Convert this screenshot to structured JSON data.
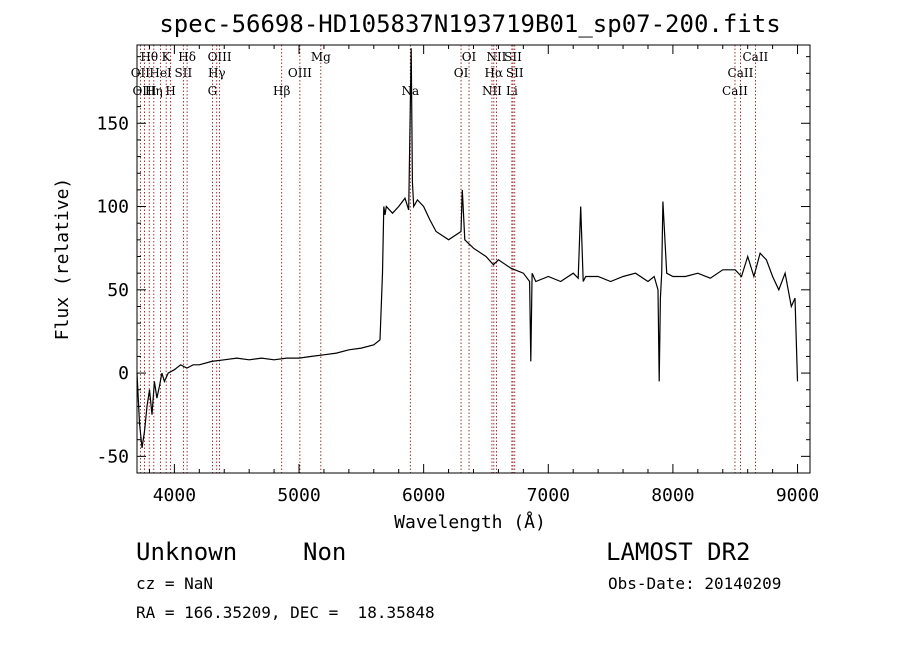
{
  "chart_data": {
    "type": "line",
    "title": "spec-56698-HD105837N193719B01_sp07-200.fits",
    "xlabel": "Wavelength (Å)",
    "ylabel": "Flux (relative)",
    "xlim": [
      3700,
      9100
    ],
    "ylim": [
      -60,
      197
    ],
    "xticks": [
      4000,
      5000,
      6000,
      7000,
      8000,
      9000
    ],
    "yticks": [
      -50,
      0,
      50,
      100,
      150
    ],
    "grid": false,
    "line_color": "#000000",
    "marker_color": "#8b0000",
    "series": [
      {
        "x": [
          3700,
          3720,
          3740,
          3760,
          3780,
          3800,
          3820,
          3840,
          3860,
          3880,
          3900,
          3920,
          3950,
          4000,
          4050,
          4100,
          4150,
          4200,
          4300,
          4400,
          4500,
          4600,
          4700,
          4800,
          4900,
          5000,
          5100,
          5200,
          5300,
          5400,
          5500,
          5600,
          5650,
          5670,
          5680,
          5690,
          5700,
          5750,
          5800,
          5850,
          5880,
          5900,
          5910,
          5920,
          5950,
          6000,
          6050,
          6100,
          6200,
          6300,
          6310,
          6330,
          6400,
          6500,
          6560,
          6600,
          6700,
          6800,
          6850,
          6860,
          6870,
          6900,
          7000,
          7100,
          7200,
          7240,
          7260,
          7280,
          7300,
          7400,
          7500,
          7600,
          7700,
          7800,
          7850,
          7880,
          7890,
          7900,
          7910,
          7920,
          7950,
          8000,
          8100,
          8200,
          8300,
          8400,
          8500,
          8550,
          8600,
          8650,
          8700,
          8750,
          8800,
          8850,
          8900,
          8950,
          8980,
          9000
        ],
        "y": [
          0,
          -30,
          -45,
          -35,
          -20,
          -10,
          -25,
          -5,
          -15,
          -8,
          0,
          -5,
          0,
          2,
          5,
          3,
          5,
          5,
          7,
          8,
          9,
          8,
          9,
          8,
          9,
          9,
          10,
          11,
          12,
          14,
          15,
          17,
          20,
          60,
          100,
          95,
          100,
          96,
          100,
          105,
          98,
          195,
          115,
          100,
          104,
          100,
          92,
          85,
          80,
          85,
          110,
          80,
          75,
          70,
          65,
          68,
          63,
          60,
          55,
          7,
          60,
          55,
          58,
          55,
          60,
          57,
          100,
          55,
          58,
          58,
          55,
          58,
          60,
          55,
          58,
          50,
          -5,
          45,
          60,
          103,
          60,
          58,
          58,
          60,
          57,
          62,
          62,
          58,
          70,
          58,
          72,
          68,
          58,
          50,
          60,
          40,
          45,
          -5
        ]
      }
    ],
    "line_markers": [
      {
        "label": "Hθ",
        "x": 3798,
        "row": 1
      },
      {
        "label": "OII",
        "x": 3727,
        "row": 2
      },
      {
        "label": "OIII",
        "x": 3760,
        "row": 3
      },
      {
        "label": "Hη",
        "x": 3835,
        "row": 3
      },
      {
        "label": "HeI",
        "x": 3889,
        "row": 2
      },
      {
        "label": "K",
        "x": 3934,
        "row": 1
      },
      {
        "label": "H",
        "x": 3970,
        "row": 3
      },
      {
        "label": "SII",
        "x": 4072,
        "row": 2
      },
      {
        "label": "Hδ",
        "x": 4102,
        "row": 1
      },
      {
        "label": "OIII",
        "x": 4363,
        "row": 1
      },
      {
        "label": "Hγ",
        "x": 4340,
        "row": 2
      },
      {
        "label": "G",
        "x": 4305,
        "row": 3
      },
      {
        "label": "Hβ",
        "x": 4861,
        "row": 3
      },
      {
        "label": "OIII",
        "x": 5007,
        "row": 2
      },
      {
        "label": "Mg",
        "x": 5175,
        "row": 1
      },
      {
        "label": "Na",
        "x": 5893,
        "row": 3
      },
      {
        "label": "OI",
        "x": 6364,
        "row": 1
      },
      {
        "label": "OI",
        "x": 6300,
        "row": 2
      },
      {
        "label": "NII",
        "x": 6584,
        "row": 1
      },
      {
        "label": "Hα",
        "x": 6563,
        "row": 2
      },
      {
        "label": "NII",
        "x": 6548,
        "row": 3
      },
      {
        "label": "SII",
        "x": 6717,
        "row": 1
      },
      {
        "label": "SII",
        "x": 6731,
        "row": 2
      },
      {
        "label": "Li",
        "x": 6708,
        "row": 3
      },
      {
        "label": "CaII",
        "x": 8662,
        "row": 1
      },
      {
        "label": "CaII",
        "x": 8542,
        "row": 2
      },
      {
        "label": "CaII",
        "x": 8498,
        "row": 3
      }
    ]
  },
  "info": {
    "object_class": "Unknown",
    "object_subclass": "Non",
    "survey": "LAMOST DR2",
    "cz": "cz = NaN",
    "obs_date": "Obs-Date: 20140209",
    "coords": "RA = 166.35209, DEC =  18.35848"
  }
}
